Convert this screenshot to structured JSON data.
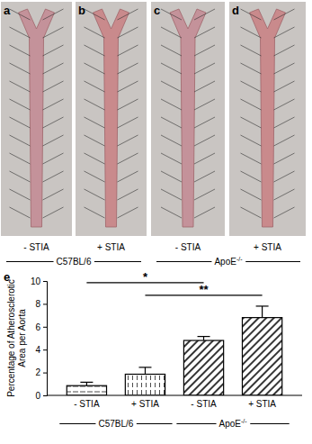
{
  "photo_panels": [
    {
      "letter": "a",
      "condition": "- STIA"
    },
    {
      "letter": "b",
      "condition": "+ STIA"
    },
    {
      "letter": "c",
      "condition": "- STIA"
    },
    {
      "letter": "d",
      "condition": "+ STIA"
    }
  ],
  "photo_groups": [
    {
      "name": "C57BL/6",
      "superscript": null,
      "panels": [
        0,
        1
      ]
    },
    {
      "name": "ApoE",
      "superscript": "-/-",
      "panels": [
        2,
        3
      ]
    }
  ],
  "chart_data": {
    "type": "bar",
    "panel_label": "e",
    "y_label": [
      "Percentage of Atherosclerotic",
      "Area per Aorta"
    ],
    "categories": [
      "- STIA",
      "+ STIA",
      "- STIA",
      "+ STIA"
    ],
    "values": [
      0.85,
      1.85,
      4.8,
      6.8
    ],
    "errors": [
      0.3,
      0.6,
      0.35,
      1.0
    ],
    "color": "#ffffff",
    "groups": [
      {
        "name": "C57BL/6",
        "superscript": null,
        "categories": [
          0,
          1
        ]
      },
      {
        "name": "ApoE",
        "superscript": "-/-",
        "categories": [
          2,
          3
        ]
      }
    ],
    "annotations": [
      {
        "text": "*",
        "from": 0,
        "to": 2
      },
      {
        "text": "**",
        "from": 1,
        "to": 3
      }
    ],
    "ylim": [
      0,
      10
    ],
    "yticks": [
      0,
      2,
      4,
      6,
      8,
      10
    ],
    "grid": false
  }
}
